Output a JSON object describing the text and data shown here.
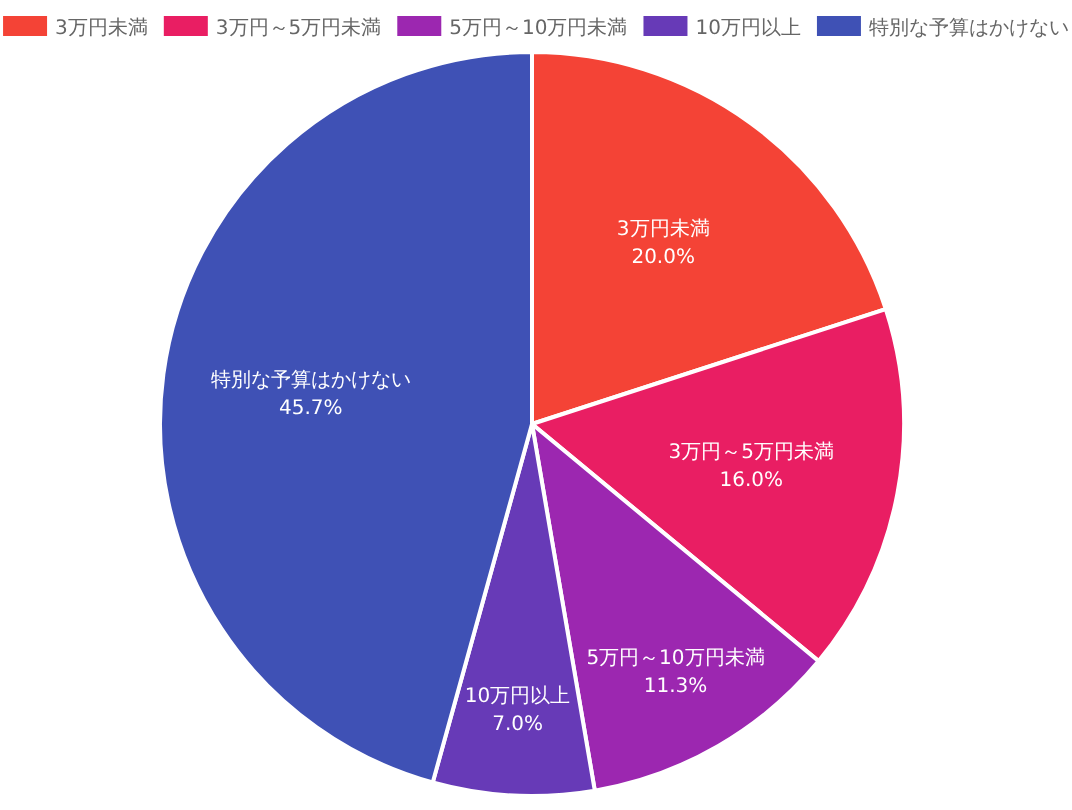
{
  "chart_data": {
    "type": "pie",
    "categories": [
      "3万円未満",
      "3万円～5万円未満",
      "5万円～10万円未満",
      "10万円以上",
      "特別な予算はかけない"
    ],
    "values": [
      20.0,
      16.0,
      11.3,
      7.0,
      45.7
    ],
    "value_labels": [
      "20.0%",
      "16.0%",
      "11.3%",
      "7.0%",
      "45.7%"
    ],
    "colors": [
      "#f44336",
      "#e91e63",
      "#9c27b0",
      "#673ab7",
      "#3f51b5"
    ],
    "legend": "top"
  }
}
